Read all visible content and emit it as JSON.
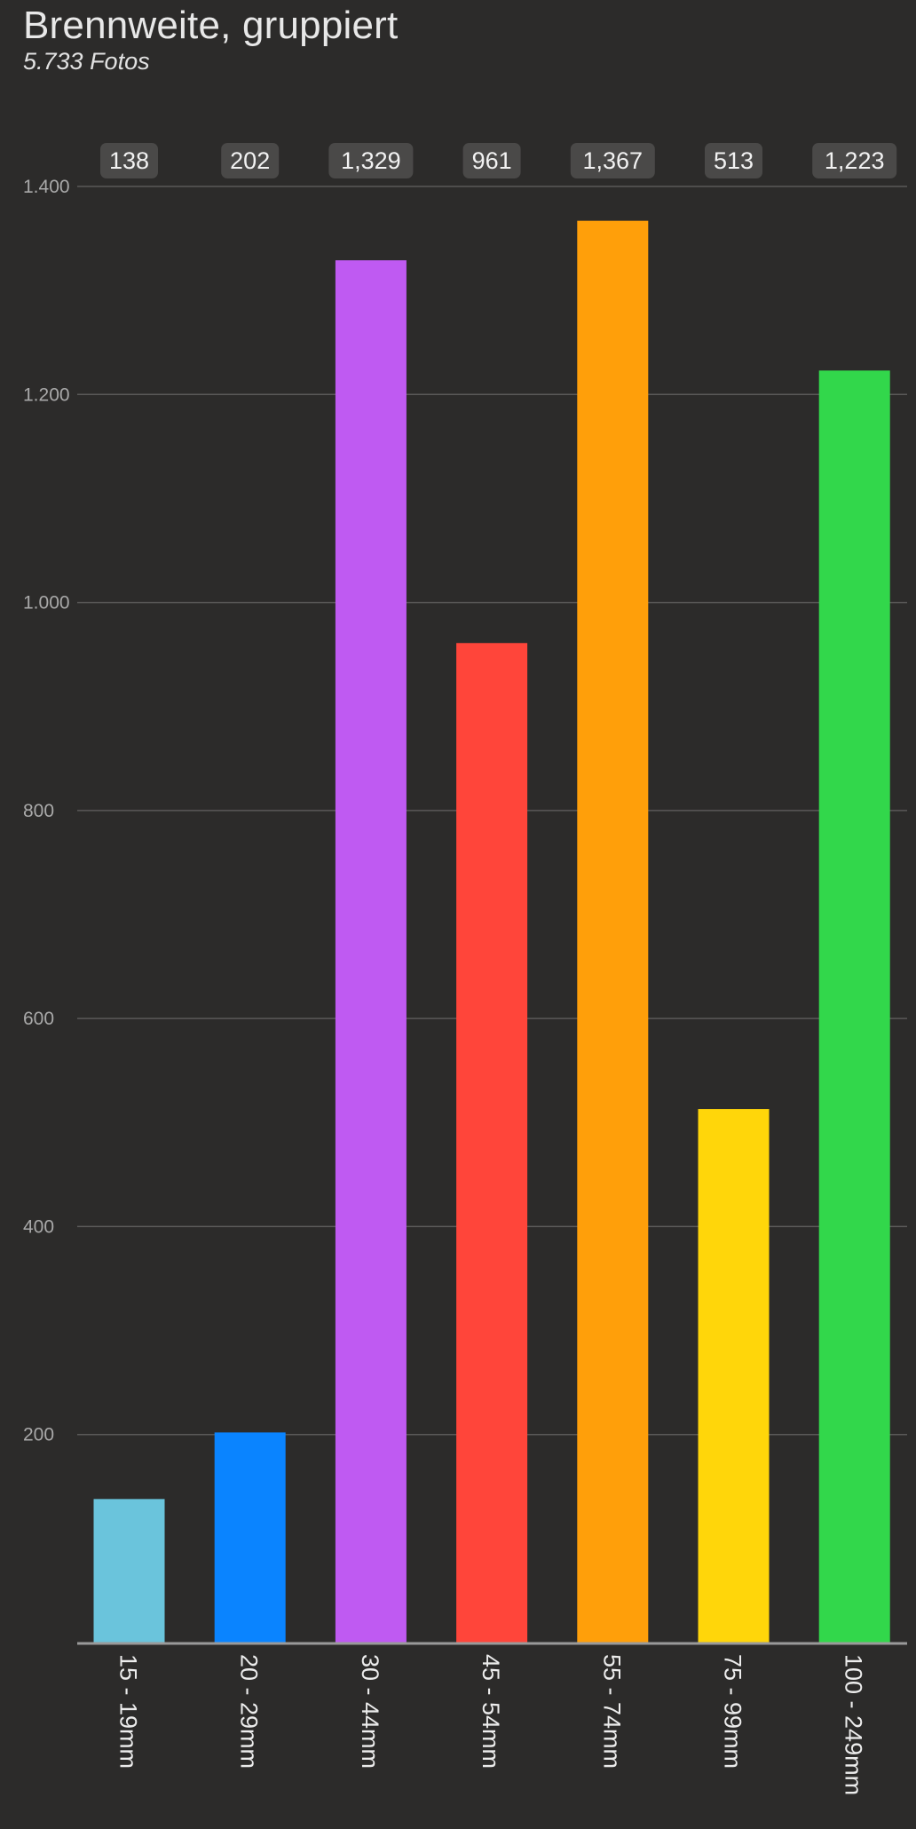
{
  "header": {
    "title": "Brennweite, gruppiert",
    "subtitle": "5.733 Fotos"
  },
  "chart_data": {
    "type": "bar",
    "title": "Brennweite, gruppiert",
    "subtitle": "5.733 Fotos",
    "xlabel": "",
    "ylabel": "",
    "categories": [
      "15 - 19mm",
      "20 - 29mm",
      "30 - 44mm",
      "45 - 54mm",
      "55 - 74mm",
      "75 - 99mm",
      "100 - 249mm"
    ],
    "values": [
      138,
      202,
      1329,
      961,
      1367,
      513,
      1223
    ],
    "value_labels": [
      "138",
      "202",
      "1,329",
      "961",
      "1,367",
      "513",
      "1,223"
    ],
    "colors": [
      "#6ac4dc",
      "#0a84ff",
      "#bf5af2",
      "#ff453a",
      "#ff9f0a",
      "#ffd60a",
      "#32d74b"
    ],
    "ylim": [
      0,
      1400
    ],
    "yticks": [
      200,
      400,
      600,
      800,
      1000,
      1200,
      1400
    ],
    "ytick_labels": [
      "200",
      "400",
      "600",
      "800",
      "1.000",
      "1.200",
      "1.400"
    ],
    "grid": true,
    "legend": "none",
    "colors_ui": {
      "background": "#2c2b2a",
      "gridline": "#5a5958",
      "baseline": "#9a9a9a",
      "value_badge": "#4a4948"
    }
  }
}
